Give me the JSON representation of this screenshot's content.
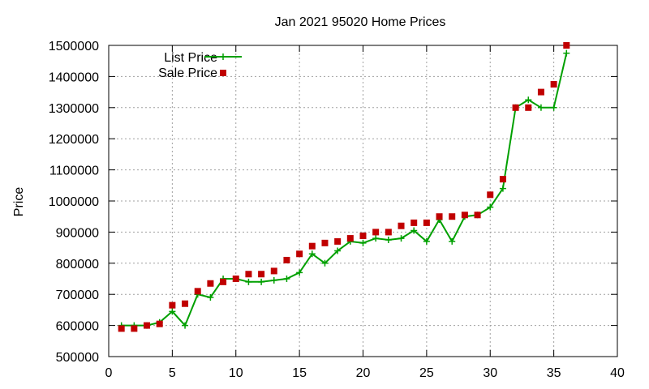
{
  "chart_data": {
    "type": "line",
    "title": "Jan 2021 95020 Home Prices",
    "xlabel": "",
    "ylabel": "Price",
    "xlim": [
      0,
      40
    ],
    "ylim": [
      500000,
      1500000
    ],
    "xticks": [
      0,
      5,
      10,
      15,
      20,
      25,
      30,
      35,
      40
    ],
    "yticks": [
      500000,
      600000,
      700000,
      800000,
      900000,
      1000000,
      1100000,
      1200000,
      1300000,
      1400000,
      1500000
    ],
    "grid": true,
    "legend_position": "top-left",
    "series": [
      {
        "name": "List Price",
        "style": "line-with-plus-markers",
        "color": "#00a000",
        "x": [
          1,
          2,
          3,
          4,
          5,
          6,
          7,
          8,
          9,
          10,
          11,
          12,
          13,
          14,
          15,
          16,
          17,
          18,
          19,
          20,
          21,
          22,
          23,
          24,
          25,
          26,
          27,
          28,
          29,
          30,
          31,
          32,
          33,
          34,
          35,
          36
        ],
        "y": [
          600000,
          600000,
          600000,
          610000,
          645000,
          600000,
          700000,
          690000,
          750000,
          750000,
          740000,
          740000,
          745000,
          750000,
          770000,
          830000,
          800000,
          840000,
          870000,
          865000,
          880000,
          875000,
          880000,
          905000,
          870000,
          940000,
          870000,
          950000,
          955000,
          980000,
          1040000,
          1300000,
          1325000,
          1300000,
          1300000,
          1475000
        ]
      },
      {
        "name": "Sale Price",
        "style": "square-markers",
        "color": "#c00000",
        "x": [
          1,
          2,
          3,
          4,
          5,
          6,
          7,
          8,
          9,
          10,
          11,
          12,
          13,
          14,
          15,
          16,
          17,
          18,
          19,
          20,
          21,
          22,
          23,
          24,
          25,
          26,
          27,
          28,
          29,
          30,
          31,
          32,
          33,
          34,
          35,
          36
        ],
        "y": [
          590000,
          590000,
          600000,
          605000,
          665000,
          670000,
          710000,
          735000,
          740000,
          750000,
          765000,
          765000,
          775000,
          810000,
          830000,
          855000,
          865000,
          870000,
          880000,
          888000,
          900000,
          900000,
          920000,
          930000,
          930000,
          950000,
          950000,
          955000,
          955000,
          1020000,
          1070000,
          1300000,
          1300000,
          1350000,
          1375000,
          1500000
        ]
      }
    ]
  }
}
